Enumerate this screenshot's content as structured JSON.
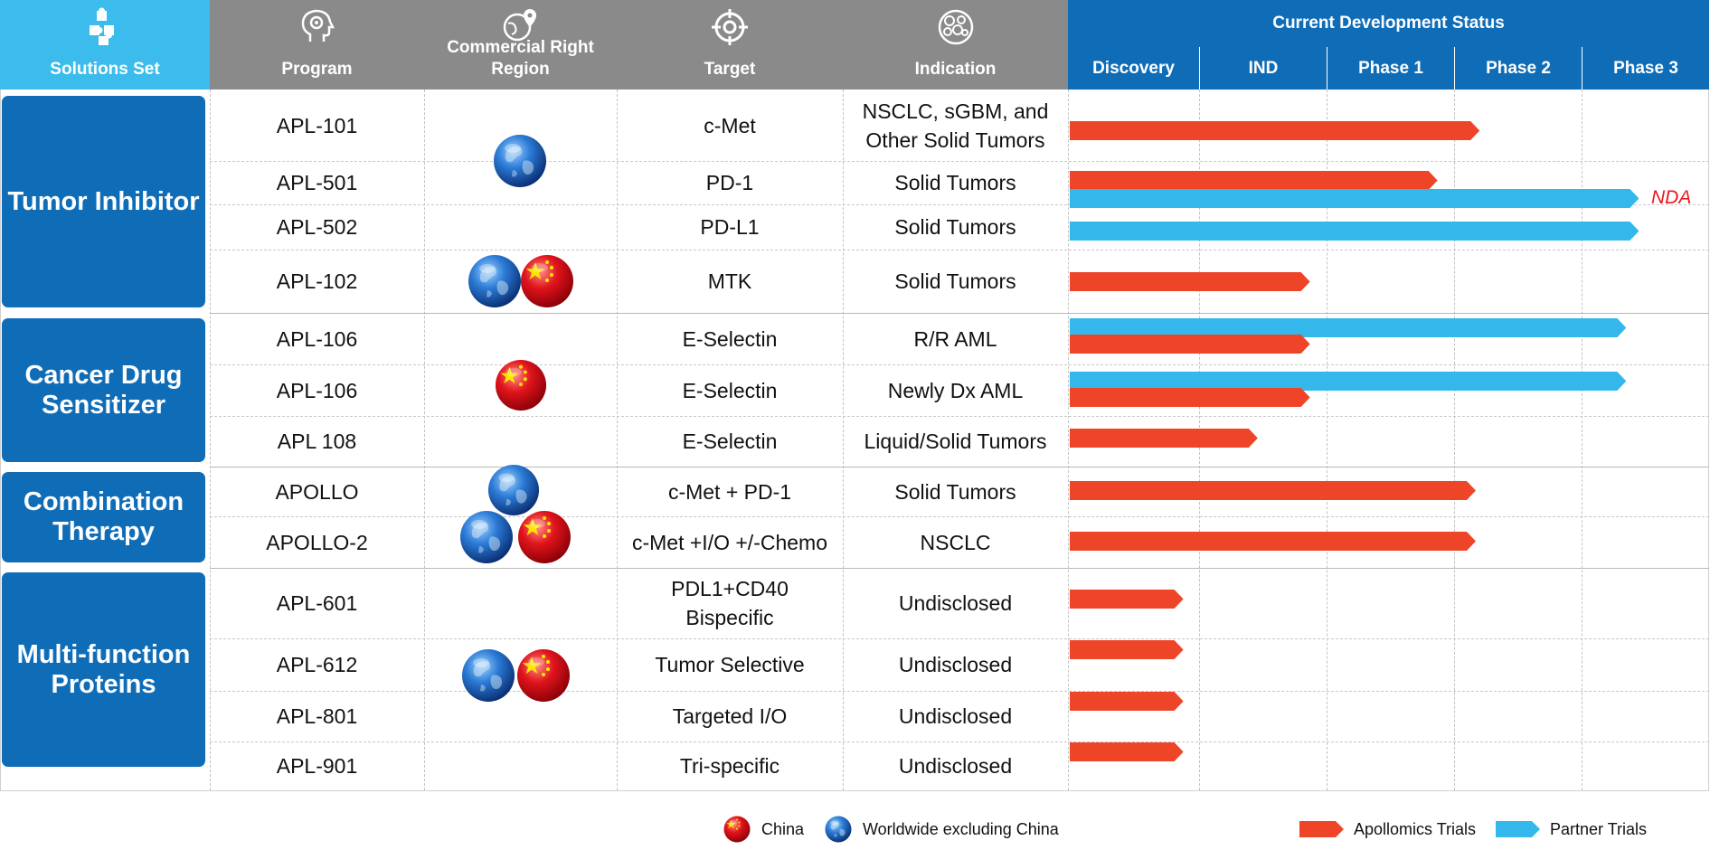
{
  "colors": {
    "apollomics": "#ee4427",
    "partner": "#34b8ec",
    "header_blue": "#0f6db8",
    "header_grey": "#8a8a8a",
    "solutions_blue": "#3bbcec"
  },
  "headers": {
    "solutions_set": "Solutions Set",
    "program": "Program",
    "region": "Commercial Right Region",
    "target": "Target",
    "indication": "Indication",
    "status": "Current Development Status"
  },
  "icons": {
    "solutions_set": "puzzle-icon",
    "program": "brain-gear-icon",
    "region": "globe-pin-icon",
    "target": "crosshair-icon",
    "indication": "cells-icon"
  },
  "sections": [
    {
      "label": "Tumor Inhibitor"
    },
    {
      "label": "Cancer Drug Sensitizer"
    },
    {
      "label": "Combination Therapy"
    },
    {
      "label": "Multi-function Proteins"
    }
  ],
  "chart_data": {
    "type": "bar",
    "title": "Current Development Status",
    "orientation": "horizontal",
    "stages": [
      "Discovery",
      "IND",
      "Phase 1",
      "Phase 2",
      "Phase 3"
    ],
    "value_unit": "stage progress (0 = start of Discovery, 5 = end of Phase 3)",
    "xlim": [
      0,
      5
    ],
    "series": [
      {
        "name": "Apollomics Trials",
        "color": "#ee4427"
      },
      {
        "name": "Partner Trials",
        "color": "#34b8ec"
      }
    ],
    "rows": [
      {
        "program": "APL-101",
        "target": "c-Met",
        "indication": "NSCLC, sGBM, and Other Solid Tumors",
        "apollomics": 3.2
      },
      {
        "program": "APL-501",
        "target": "PD-1",
        "indication": "Solid Tumors",
        "apollomics": 2.87
      },
      {
        "program": "APL-502",
        "target": "PD-L1",
        "indication": "Solid Tumors",
        "partner": 4.45
      },
      {
        "program": "APL-102",
        "target": "MTK",
        "indication": "Solid Tumors",
        "apollomics": 1.87
      },
      {
        "program": "APL-106",
        "target": "E-Selectin",
        "indication": "R/R AML",
        "partner": 4.35,
        "apollomics": 1.87
      },
      {
        "program": "APL-106",
        "target": "E-Selectin",
        "indication": "Newly Dx AML",
        "partner": 4.35,
        "apollomics": 1.87
      },
      {
        "program": "APL 108",
        "target": "E-Selectin",
        "indication": "Liquid/Solid Tumors",
        "apollomics": 1.46
      },
      {
        "program": "APOLLO",
        "target": "c-Met + PD-1",
        "indication": "Solid Tumors",
        "apollomics": 3.17
      },
      {
        "program": "APOLLO-2",
        "target": "c-Met +I/O +/-Chemo",
        "indication": "NSCLC",
        "apollomics": 3.17
      },
      {
        "program": "APL-601",
        "target": "PDL1+CD40 Bispecific",
        "indication": "Undisclosed",
        "apollomics": 0.88
      },
      {
        "program": "APL-612",
        "target": "Tumor Selective",
        "indication": "Undisclosed",
        "apollomics": 0.88
      },
      {
        "program": "APL-801",
        "target": "Targeted I/O",
        "indication": "Undisclosed",
        "apollomics": 0.88
      },
      {
        "program": "APL-901",
        "target": "Tri-specific",
        "indication": "Undisclosed",
        "apollomics": 0.88
      }
    ],
    "extra_partner_bar": {
      "program": "APL-501",
      "value": 4.45,
      "annotation": "NDA"
    },
    "regions": [
      {
        "rows": [
          "APL-101",
          "APL-501"
        ],
        "flags": [
          "globe"
        ]
      },
      {
        "rows": [
          "APL-102"
        ],
        "flags": [
          "globe",
          "china"
        ]
      },
      {
        "rows": [
          "APL-106",
          "APL-106",
          "APL 108"
        ],
        "flags": [
          "china"
        ]
      },
      {
        "rows": [
          "APOLLO",
          "APOLLO-2"
        ],
        "flags": [
          "globe",
          "globe",
          "china"
        ]
      },
      {
        "rows": [
          "APL-601",
          "APL-612",
          "APL-801",
          "APL-901"
        ],
        "flags": [
          "globe",
          "china"
        ]
      }
    ]
  },
  "legend": {
    "china": "China",
    "worldwide": "Worldwide excluding China",
    "apollomics": "Apollomics Trials",
    "partner": "Partner Trials"
  }
}
